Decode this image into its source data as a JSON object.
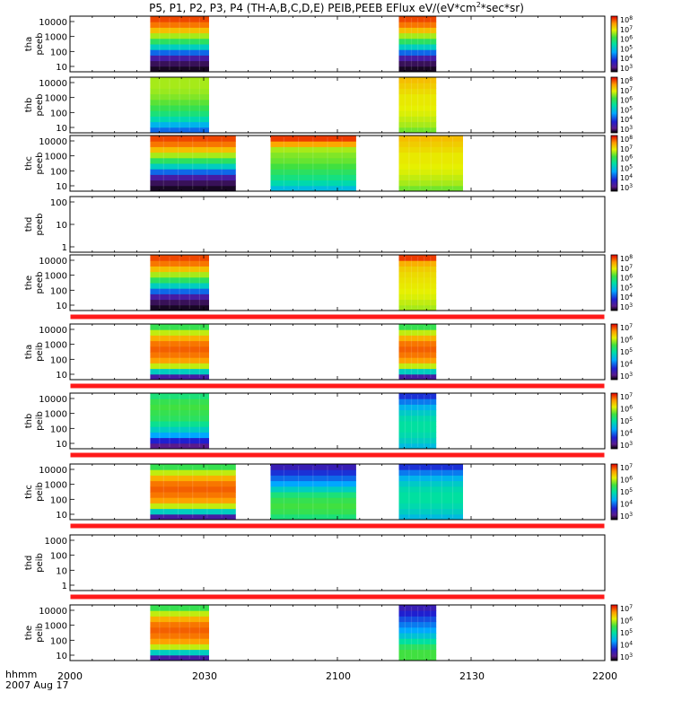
{
  "chart_data": {
    "type": "heatmap",
    "title": "P5, P1, P2, P3, P4 (TH-A,B,C,D,E) PEIB,PEEB EFlux eV/(eV*cm",
    "title_sup": "2",
    "title_end": "*sec*sr)",
    "x_ticks": [
      "2000",
      "2030",
      "2100",
      "2130",
      "2200"
    ],
    "x_label_line1": "hhmm",
    "x_label_line2": "2007 Aug 17",
    "colorbar_exponents_peeb": [
      "8",
      "7",
      "6",
      "5",
      "4",
      "3"
    ],
    "colorbar_exponents_peib": [
      "7",
      "6",
      "5",
      "4",
      "3"
    ],
    "colorbar_base": "10",
    "panels": [
      {
        "probe": "tha",
        "product": "peeb",
        "yticks": [
          "10000",
          "1000",
          "100",
          "10"
        ],
        "colorbar": "peeb",
        "red_bar_below": false,
        "blocks": [
          {
            "start": 0.15,
            "end": 0.26,
            "profile": "e1"
          },
          {
            "start": 0.615,
            "end": 0.685,
            "profile": "e1"
          }
        ]
      },
      {
        "probe": "thb",
        "product": "peeb",
        "yticks": [
          "10000",
          "1000",
          "100",
          "10"
        ],
        "colorbar": "peeb",
        "red_bar_below": false,
        "blocks": [
          {
            "start": 0.15,
            "end": 0.26,
            "profile": "e2"
          },
          {
            "start": 0.615,
            "end": 0.685,
            "profile": "e3"
          }
        ]
      },
      {
        "probe": "thc",
        "product": "peeb",
        "yticks": [
          "10000",
          "1000",
          "100",
          "10"
        ],
        "colorbar": "peeb",
        "red_bar_below": false,
        "blocks": [
          {
            "start": 0.15,
            "end": 0.31,
            "profile": "e1"
          },
          {
            "start": 0.375,
            "end": 0.535,
            "profile": "e4"
          },
          {
            "start": 0.615,
            "end": 0.735,
            "profile": "e3"
          }
        ]
      },
      {
        "probe": "thd",
        "product": "peeb",
        "yticks": [
          "100",
          "10",
          "1"
        ],
        "colorbar": "none",
        "red_bar_below": false,
        "blocks": []
      },
      {
        "probe": "the",
        "product": "peeb",
        "yticks": [
          "10000",
          "1000",
          "100",
          "10"
        ],
        "colorbar": "peeb",
        "red_bar_below": true,
        "blocks": [
          {
            "start": 0.15,
            "end": 0.26,
            "profile": "e1"
          },
          {
            "start": 0.615,
            "end": 0.685,
            "profile": "e5"
          }
        ]
      },
      {
        "probe": "tha",
        "product": "peib",
        "yticks": [
          "10000",
          "1000",
          "100",
          "10"
        ],
        "colorbar": "peib",
        "red_bar_below": true,
        "blocks": [
          {
            "start": 0.15,
            "end": 0.26,
            "profile": "i1"
          },
          {
            "start": 0.615,
            "end": 0.685,
            "profile": "i1"
          }
        ]
      },
      {
        "probe": "thb",
        "product": "peib",
        "yticks": [
          "10000",
          "1000",
          "100",
          "10"
        ],
        "colorbar": "peib",
        "red_bar_below": true,
        "blocks": [
          {
            "start": 0.15,
            "end": 0.26,
            "profile": "i2"
          },
          {
            "start": 0.615,
            "end": 0.685,
            "profile": "i3"
          }
        ]
      },
      {
        "probe": "thc",
        "product": "peib",
        "yticks": [
          "10000",
          "1000",
          "100",
          "10"
        ],
        "colorbar": "peib",
        "red_bar_below": true,
        "blocks": [
          {
            "start": 0.15,
            "end": 0.31,
            "profile": "i1"
          },
          {
            "start": 0.375,
            "end": 0.535,
            "profile": "i4"
          },
          {
            "start": 0.615,
            "end": 0.735,
            "profile": "i3"
          }
        ]
      },
      {
        "probe": "thd",
        "product": "peib",
        "yticks": [
          "1000",
          "100",
          "10",
          "1"
        ],
        "colorbar": "none",
        "red_bar_below": true,
        "blocks": []
      },
      {
        "probe": "the",
        "product": "peib",
        "yticks": [
          "10000",
          "1000",
          "100",
          "10"
        ],
        "colorbar": "peib",
        "red_bar_below": false,
        "blocks": [
          {
            "start": 0.15,
            "end": 0.26,
            "profile": "i1"
          },
          {
            "start": 0.615,
            "end": 0.685,
            "profile": "i5"
          }
        ]
      }
    ],
    "profiles": {
      "e1": [
        0.02,
        0.05,
        0.12,
        0.28,
        0.45,
        0.58,
        0.7,
        0.82,
        0.9,
        0.94
      ],
      "e2": [
        0.28,
        0.38,
        0.48,
        0.55,
        0.6,
        0.64,
        0.67,
        0.69,
        0.7,
        0.7
      ],
      "e3": [
        0.66,
        0.7,
        0.72,
        0.74,
        0.75,
        0.76,
        0.76,
        0.78,
        0.8,
        0.82
      ],
      "e4": [
        0.4,
        0.48,
        0.54,
        0.58,
        0.62,
        0.65,
        0.67,
        0.7,
        0.85,
        0.95
      ],
      "e5": [
        0.7,
        0.72,
        0.74,
        0.75,
        0.76,
        0.77,
        0.78,
        0.8,
        0.84,
        0.95
      ],
      "i1": [
        0.12,
        0.45,
        0.72,
        0.86,
        0.9,
        0.92,
        0.9,
        0.84,
        0.72,
        0.6
      ],
      "i2": [
        0.08,
        0.2,
        0.35,
        0.45,
        0.52,
        0.58,
        0.6,
        0.62,
        0.6,
        0.55
      ],
      "i3": [
        0.4,
        0.45,
        0.48,
        0.5,
        0.5,
        0.48,
        0.44,
        0.38,
        0.3,
        0.22
      ],
      "i4": [
        0.55,
        0.6,
        0.62,
        0.6,
        0.55,
        0.45,
        0.35,
        0.28,
        0.22,
        0.15
      ],
      "i5": [
        0.62,
        0.62,
        0.58,
        0.5,
        0.42,
        0.35,
        0.3,
        0.25,
        0.2,
        0.15
      ]
    }
  }
}
